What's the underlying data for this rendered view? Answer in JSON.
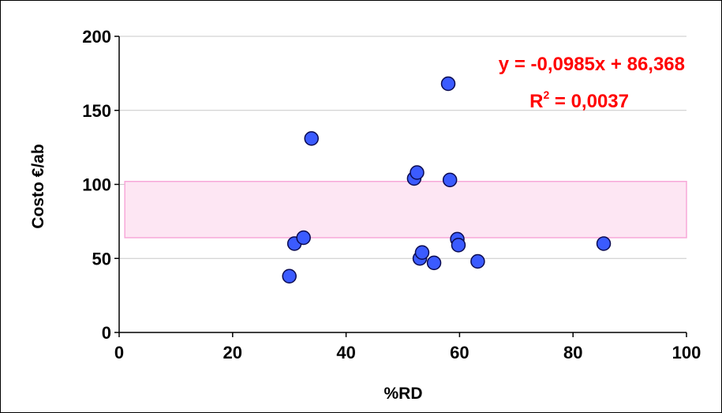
{
  "chart_data": {
    "type": "scatter",
    "xlabel": "%RD",
    "ylabel": "Costo €/ab",
    "xlim": [
      0,
      100
    ],
    "ylim": [
      0,
      200
    ],
    "x_ticks": [
      "0",
      "20",
      "40",
      "60",
      "80",
      "100"
    ],
    "y_ticks": [
      "0",
      "50",
      "100",
      "150",
      "200"
    ],
    "grid": "horizontal",
    "series": [
      {
        "points": [
          {
            "x": 30.0,
            "y": 38
          },
          {
            "x": 30.9,
            "y": 60
          },
          {
            "x": 32.5,
            "y": 64
          },
          {
            "x": 33.9,
            "y": 131
          },
          {
            "x": 52.0,
            "y": 104
          },
          {
            "x": 52.5,
            "y": 108
          },
          {
            "x": 53.0,
            "y": 50
          },
          {
            "x": 53.4,
            "y": 54
          },
          {
            "x": 55.5,
            "y": 47
          },
          {
            "x": 58.0,
            "y": 168
          },
          {
            "x": 58.3,
            "y": 103
          },
          {
            "x": 59.6,
            "y": 63
          },
          {
            "x": 59.8,
            "y": 59
          },
          {
            "x": 63.2,
            "y": 48
          },
          {
            "x": 85.4,
            "y": 60
          }
        ],
        "color": "#3b5bff"
      }
    ],
    "band": {
      "y_from": 64,
      "y_to": 102,
      "x_from": 1,
      "x_to": 100,
      "color": "#fde6f3",
      "edge_color": "#f7a8d8"
    },
    "annotations": {
      "equation": "y = -0,0985x + 86,368",
      "r2_prefix": "R",
      "r2_sup": "2",
      "r2_suffix": " = 0,0037"
    }
  }
}
